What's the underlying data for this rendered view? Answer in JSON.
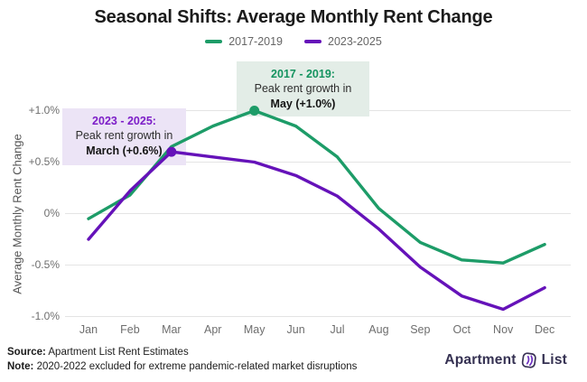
{
  "title": "Seasonal Shifts: Average Monthly Rent Change",
  "legend": [
    {
      "label": "2017-2019",
      "color": "#1d9c68"
    },
    {
      "label": "2023-2025",
      "color": "#6512b9"
    }
  ],
  "annotations": {
    "green": {
      "line1": "2017 - 2019:",
      "line2": "Peak rent growth in",
      "line3": "May (+1.0%)"
    },
    "purple": {
      "line1": "2023 - 2025:",
      "line2": "Peak rent growth in",
      "line3": "March (+0.6%)"
    }
  },
  "footer": {
    "source_label": "Source:",
    "source_text": " Apartment List Rent Estimates",
    "note_label": "Note:",
    "note_text": " 2020-2022 excluded for extreme pandemic-related market disruptions",
    "logo_left": "Apartment",
    "logo_right": "List"
  },
  "chart_data": {
    "type": "line",
    "title": "Seasonal Shifts: Average Monthly Rent Change",
    "ylabel": "Average Monthly Rent Change",
    "xlabel": "",
    "categories": [
      "Jan",
      "Feb",
      "Mar",
      "Apr",
      "May",
      "Jun",
      "Jul",
      "Aug",
      "Sep",
      "Oct",
      "Nov",
      "Dec"
    ],
    "series": [
      {
        "name": "2017-2019",
        "color": "#1d9c68",
        "values": [
          -0.05,
          0.18,
          0.65,
          0.85,
          1.0,
          0.85,
          0.55,
          0.05,
          -0.28,
          -0.45,
          -0.48,
          -0.3
        ],
        "peak": {
          "month": "May",
          "value": 1.0
        }
      },
      {
        "name": "2023-2025",
        "color": "#6512b9",
        "values": [
          -0.25,
          0.22,
          0.6,
          0.55,
          0.5,
          0.37,
          0.17,
          -0.15,
          -0.52,
          -0.8,
          -0.93,
          -0.72
        ],
        "peak": {
          "month": "Mar",
          "value": 0.6
        }
      }
    ],
    "yticks": [
      {
        "label": "+1.0%",
        "value": 1.0
      },
      {
        "label": "+0.5%",
        "value": 0.5
      },
      {
        "label": "0%",
        "value": 0.0
      },
      {
        "label": "-0.5%",
        "value": -0.5
      },
      {
        "label": "-1.0%",
        "value": -1.0
      }
    ],
    "ylim": [
      -1.0,
      1.0
    ],
    "grid": true,
    "legend_position": "top"
  }
}
